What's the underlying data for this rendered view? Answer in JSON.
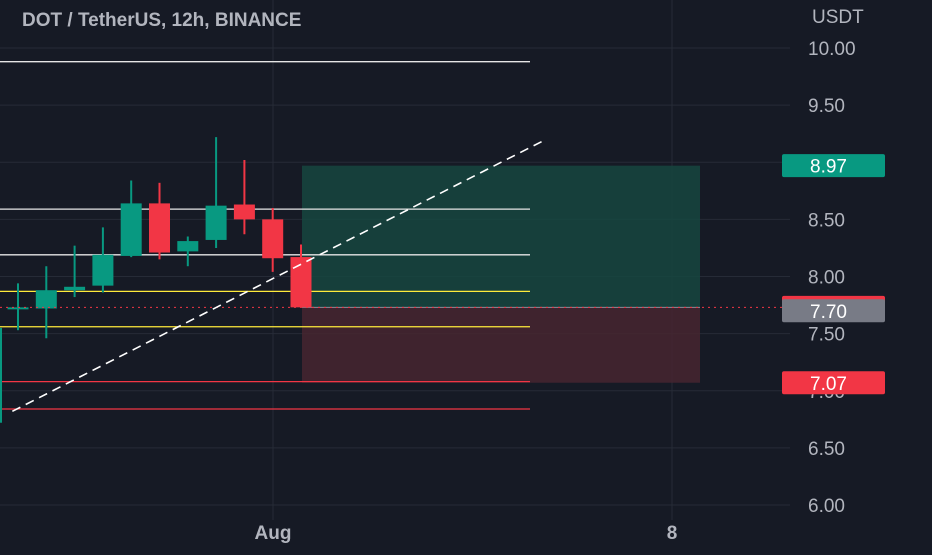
{
  "title": "DOT / TetherUS, 12h, BINANCE",
  "currency_label": "USDT",
  "x_tick_labels": [
    "Aug",
    "8"
  ],
  "colors": {
    "background": "#161a25",
    "grid": "#262b37",
    "up": "#089981",
    "down": "#f23645",
    "text": "#b2b5be",
    "yellow": "#ffeb3b",
    "white_line": "#e6e6e6",
    "gray_badge": "#787b86",
    "profit_zone": "#164640",
    "loss_zone": "#472630"
  },
  "chart_data": {
    "type": "candlestick",
    "title": "DOT / TetherUS, 12h, BINANCE",
    "ylabel": "USDT",
    "ylim": [
      6.0,
      10.0
    ],
    "y_ticks": [
      6.0,
      6.5,
      7.0,
      7.5,
      8.0,
      8.5,
      9.0,
      9.5,
      10.0
    ],
    "y_tick_labels": [
      "6.00",
      "6.50",
      "7.00",
      "7.50",
      "8.00",
      "8.50",
      "9.00",
      "9.50",
      "10.00"
    ],
    "x_tick_labels": [
      "Aug",
      "8"
    ],
    "candles": [
      {
        "open": 7.73,
        "high": 7.94,
        "low": 7.53,
        "close": 7.73
      },
      {
        "open": 7.72,
        "high": 8.09,
        "low": 7.46,
        "close": 7.88
      },
      {
        "open": 7.88,
        "high": 8.27,
        "low": 7.82,
        "close": 7.91
      },
      {
        "open": 7.92,
        "high": 8.43,
        "low": 7.86,
        "close": 8.19
      },
      {
        "open": 8.18,
        "high": 8.84,
        "low": 8.17,
        "close": 8.64
      },
      {
        "open": 8.64,
        "high": 8.82,
        "low": 8.15,
        "close": 8.21
      },
      {
        "open": 8.22,
        "high": 8.35,
        "low": 8.09,
        "close": 8.31
      },
      {
        "open": 8.32,
        "high": 9.22,
        "low": 8.25,
        "close": 8.62
      },
      {
        "open": 8.63,
        "high": 9.02,
        "low": 8.37,
        "close": 8.5
      },
      {
        "open": 8.5,
        "high": 8.6,
        "low": 8.04,
        "close": 8.16
      },
      {
        "open": 8.17,
        "high": 8.28,
        "low": 7.73,
        "close": 7.73
      }
    ],
    "horizontal_lines": [
      {
        "price": 9.88,
        "color": "#e6e6e6"
      },
      {
        "price": 8.59,
        "color": "#e6e6e6"
      },
      {
        "price": 8.19,
        "color": "#e6e6e6"
      },
      {
        "price": 7.87,
        "color": "#ffeb3b"
      },
      {
        "price": 7.56,
        "color": "#ffeb3b"
      },
      {
        "price": 7.08,
        "color": "#f23645"
      },
      {
        "price": 6.84,
        "color": "#f23645"
      }
    ],
    "trendline": {
      "from": {
        "bar": -0.2,
        "price": 6.82
      },
      "to": {
        "bar": 18.5,
        "price": 9.18
      }
    },
    "position": {
      "entry": 7.73,
      "target": 8.97,
      "stop": 7.07
    },
    "price_labels": [
      {
        "text": "8.97",
        "price": 8.97,
        "kind": "target"
      },
      {
        "text": "7.73",
        "price": 7.73,
        "kind": "last"
      },
      {
        "text": "7.70",
        "price": 7.7,
        "kind": "gray"
      },
      {
        "text": "7.07",
        "price": 7.07,
        "kind": "stop"
      }
    ]
  }
}
